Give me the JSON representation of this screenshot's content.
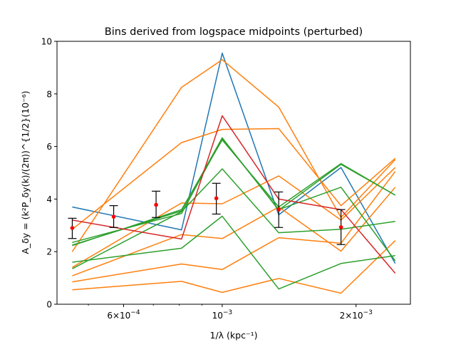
{
  "chart_data": {
    "type": "line",
    "title": "Bins derived from logspace midpoints (perturbed)",
    "xlabel": "1/λ (kpc⁻¹)",
    "ylabel": "A_δy = (k²P_δy(k)/(2π))^{1/2}(10⁻⁶)",
    "x_scale": "log",
    "xlim": [
      0.000425,
      0.00265
    ],
    "ylim": [
      0,
      10
    ],
    "grid": false,
    "legend": "none",
    "x_ticks": [
      {
        "value": 0.0006,
        "mantissa": "6",
        "times": "×",
        "base": "10",
        "exp": "−4"
      },
      {
        "value": 0.001,
        "mantissa": "",
        "times": "",
        "base": "10",
        "exp": "−3"
      },
      {
        "value": 0.002,
        "mantissa": "2",
        "times": "×",
        "base": "10",
        "exp": "−3"
      }
    ],
    "y_ticks": [
      0,
      2,
      4,
      6,
      8,
      10
    ],
    "x": [
      0.00046,
      0.00057,
      0.00071,
      0.00081,
      0.001,
      0.00134,
      0.00185,
      0.00245
    ],
    "series": [
      {
        "color": "#1f77b4",
        "points": [
          [
            0.00046,
            3.7
          ],
          [
            0.00081,
            2.83
          ],
          [
            0.001,
            9.55
          ],
          [
            0.00134,
            3.4
          ],
          [
            0.00185,
            5.2
          ],
          [
            0.00245,
            1.55
          ]
        ]
      },
      {
        "color": "#ff7f0e",
        "points": [
          [
            0.00046,
            2.0
          ],
          [
            0.00081,
            8.25
          ],
          [
            0.001,
            9.3
          ],
          [
            0.00134,
            7.5
          ],
          [
            0.00185,
            3.3
          ],
          [
            0.00245,
            5.5
          ]
        ]
      },
      {
        "color": "#ff7f0e",
        "points": [
          [
            0.00046,
            2.85
          ],
          [
            0.00081,
            6.15
          ],
          [
            0.001,
            6.65
          ],
          [
            0.00134,
            6.68
          ],
          [
            0.00185,
            3.75
          ],
          [
            0.00245,
            5.55
          ]
        ]
      },
      {
        "color": "#ff7f0e",
        "points": [
          [
            0.00046,
            1.4
          ],
          [
            0.00081,
            3.85
          ],
          [
            0.001,
            3.82
          ],
          [
            0.00134,
            4.88
          ],
          [
            0.00185,
            3.2
          ],
          [
            0.00245,
            5.2
          ]
        ]
      },
      {
        "color": "#ff7f0e",
        "points": [
          [
            0.00046,
            1.08
          ],
          [
            0.00081,
            2.65
          ],
          [
            0.001,
            2.5
          ],
          [
            0.00134,
            3.7
          ],
          [
            0.00185,
            2.02
          ],
          [
            0.00245,
            4.45
          ]
        ]
      },
      {
        "color": "#ff7f0e",
        "points": [
          [
            0.00046,
            0.85
          ],
          [
            0.00081,
            1.53
          ],
          [
            0.001,
            1.32
          ],
          [
            0.00134,
            2.53
          ],
          [
            0.00185,
            2.32
          ],
          [
            0.00245,
            5.05
          ]
        ]
      },
      {
        "color": "#ff7f0e",
        "points": [
          [
            0.00046,
            0.55
          ],
          [
            0.00081,
            0.87
          ],
          [
            0.001,
            0.45
          ],
          [
            0.00134,
            0.98
          ],
          [
            0.00185,
            0.42
          ],
          [
            0.00245,
            2.42
          ]
        ]
      },
      {
        "color": "#2ca02c",
        "points": [
          [
            0.00046,
            2.25
          ],
          [
            0.00081,
            3.55
          ],
          [
            0.001,
            6.33
          ],
          [
            0.00134,
            3.58
          ],
          [
            0.00185,
            5.32
          ],
          [
            0.00245,
            4.15
          ]
        ]
      },
      {
        "color": "#2ca02c",
        "points": [
          [
            0.00046,
            2.23
          ],
          [
            0.00081,
            3.6
          ],
          [
            0.001,
            6.25
          ],
          [
            0.00134,
            3.7
          ],
          [
            0.00185,
            5.35
          ],
          [
            0.00245,
            4.15
          ]
        ]
      },
      {
        "color": "#2ca02c",
        "points": [
          [
            0.00046,
            1.35
          ],
          [
            0.00081,
            3.52
          ],
          [
            0.001,
            5.15
          ],
          [
            0.00134,
            2.72
          ],
          [
            0.00185,
            2.85
          ],
          [
            0.00245,
            3.15
          ]
        ]
      },
      {
        "color": "#2ca02c",
        "points": [
          [
            0.00046,
            1.6
          ],
          [
            0.00081,
            2.13
          ],
          [
            0.001,
            3.35
          ],
          [
            0.00134,
            0.58
          ],
          [
            0.00185,
            1.55
          ],
          [
            0.00245,
            1.85
          ]
        ]
      },
      {
        "color": "#2ca02c",
        "points": [
          [
            0.00046,
            2.35
          ],
          [
            0.00081,
            3.45
          ],
          [
            0.001,
            6.3
          ],
          [
            0.00134,
            3.6
          ],
          [
            0.00185,
            4.45
          ],
          [
            0.00245,
            1.65
          ]
        ]
      },
      {
        "color": "#d62728",
        "points": [
          [
            0.00046,
            3.2
          ],
          [
            0.00081,
            2.48
          ],
          [
            0.001,
            7.17
          ],
          [
            0.00134,
            4.0
          ],
          [
            0.00185,
            3.6
          ],
          [
            0.00245,
            1.18
          ]
        ]
      }
    ],
    "mean_points": {
      "color": "#ff0000",
      "errorbar_color": "#000000",
      "points": [
        {
          "x": 0.00046,
          "y": 2.9,
          "lo": 2.5,
          "hi": 3.27
        },
        {
          "x": 0.00057,
          "y": 3.33,
          "lo": 2.92,
          "hi": 3.75
        },
        {
          "x": 0.00071,
          "y": 3.78,
          "lo": 3.3,
          "hi": 4.3
        },
        {
          "x": 0.00097,
          "y": 4.03,
          "lo": 3.43,
          "hi": 4.6
        },
        {
          "x": 0.00134,
          "y": 3.6,
          "lo": 2.92,
          "hi": 4.27
        },
        {
          "x": 0.00185,
          "y": 2.93,
          "lo": 2.27,
          "hi": 3.6
        }
      ]
    }
  }
}
